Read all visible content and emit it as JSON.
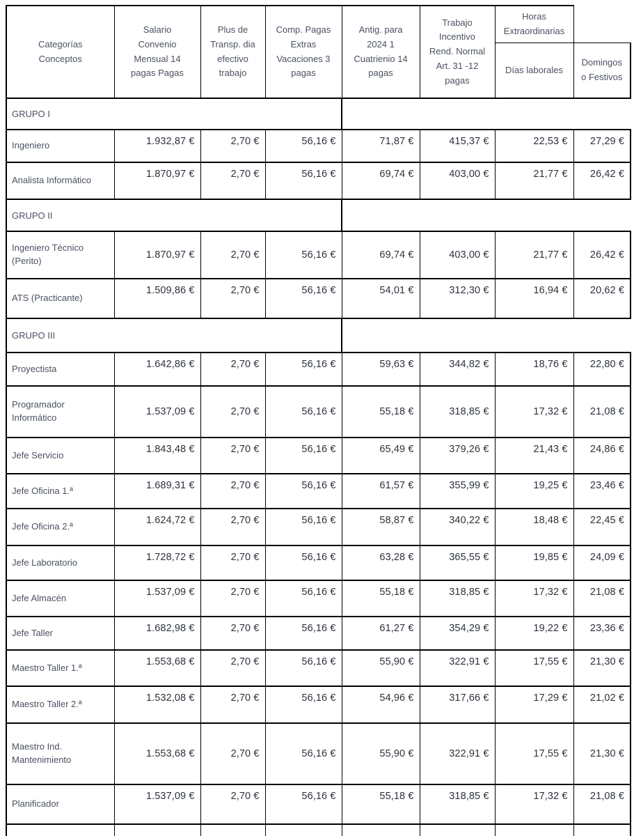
{
  "table": {
    "header": {
      "categories": "Categorías\nConceptos",
      "salario": "Salario\nConvenio\nMensual 14\npagas Pagas",
      "plus_transporte": "Plus de\nTransp. dia\nefectivo\ntrabajo",
      "comp_pagas": "Comp. Pagas\nExtras\nVacaciones 3\npagas",
      "antiguedad": "Antig. para\n2024 1\nCuatrienio 14\npagas",
      "trabajo_incentivo": "Trabajo\nIncentivo\nRend. Normal\nArt. 31 -12\npagas",
      "horas_extraordinarias": "Horas\nExtraordinarias",
      "dias_laborales": "Días laborales",
      "domingos_festivos": "Domingos\no Festivos"
    },
    "rows": [
      {
        "type": "group",
        "label": "GRUPO I"
      },
      {
        "type": "data",
        "label": "Ingeniero",
        "values": [
          "1.932,87 €",
          "2,70 €",
          "56,16 €",
          "71,87 €",
          "415,37 €",
          "22,53 €",
          "27,29 €"
        ]
      },
      {
        "type": "data",
        "label": "Analista Informático",
        "values": [
          "1.870,97 €",
          "2,70 €",
          "56,16 €",
          "69,74 €",
          "403,00 €",
          "21,77 €",
          "26,42 €"
        ]
      },
      {
        "type": "group",
        "label": "GRUPO II"
      },
      {
        "type": "data",
        "label": "Ingeniero Técnico (Perito)",
        "values": [
          "1.870,97 €",
          "2,70 €",
          "56,16 €",
          "69,74 €",
          "403,00 €",
          "21,77 €",
          "26,42 €"
        ]
      },
      {
        "type": "data",
        "label": "ATS (Practicante)",
        "values": [
          "1.509,86 €",
          "2,70 €",
          "56,16 €",
          "54,01 €",
          "312,30 €",
          "16,94 €",
          "20,62 €"
        ]
      },
      {
        "type": "group",
        "label": "GRUPO III"
      },
      {
        "type": "data",
        "label": "Proyectista",
        "values": [
          "1.642,86 €",
          "2,70 €",
          "56,16 €",
          "59,63 €",
          "344,82 €",
          "18,76 €",
          "22,80 €"
        ]
      },
      {
        "type": "data",
        "label": "Programador Informático",
        "values": [
          "1.537,09 €",
          "2,70 €",
          "56,16 €",
          "55,18 €",
          "318,85 €",
          "17,32 €",
          "21,08 €"
        ]
      },
      {
        "type": "data",
        "label": "Jefe Servicio",
        "values": [
          "1.843,48 €",
          "2,70 €",
          "56,16 €",
          "65,49 €",
          "379,26 €",
          "21,43 €",
          "24,86 €"
        ]
      },
      {
        "type": "data",
        "label": "Jefe Oficina 1.ª",
        "values": [
          "1.689,31 €",
          "2,70 €",
          "56,16 €",
          "61,57 €",
          "355,99 €",
          "19,25 €",
          "23,46 €"
        ]
      },
      {
        "type": "data",
        "label": "Jefe Oficina 2.ª",
        "values": [
          "1.624,72 €",
          "2,70 €",
          "56,16 €",
          "58,87 €",
          "340,22 €",
          "18,48 €",
          "22,45 €"
        ]
      },
      {
        "type": "data",
        "label": "Jefe Laboratorio",
        "values": [
          "1.728,72 €",
          "2,70 €",
          "56,16 €",
          "63,28 €",
          "365,55 €",
          "19,85 €",
          "24,09 €"
        ]
      },
      {
        "type": "data",
        "label": "Jefe Almacén",
        "values": [
          "1.537,09 €",
          "2,70 €",
          "56,16 €",
          "55,18 €",
          "318,85 €",
          "17,32 €",
          "21,08 €"
        ]
      },
      {
        "type": "data",
        "label": "Jefe Taller",
        "values": [
          "1.682,98 €",
          "2,70 €",
          "56,16 €",
          "61,27 €",
          "354,29 €",
          "19,22 €",
          "23,36 €"
        ]
      },
      {
        "type": "data",
        "label": "Maestro Taller 1.ª",
        "values": [
          "1.553,68 €",
          "2,70 €",
          "56,16 €",
          "55,90 €",
          "322,91 €",
          "17,55 €",
          "21,30 €"
        ]
      },
      {
        "type": "data",
        "label": "Maestro Taller 2.ª",
        "values": [
          "1.532,08 €",
          "2,70 €",
          "56,16 €",
          "54,96 €",
          "317,66 €",
          "17,29 €",
          "21,02 €"
        ]
      },
      {
        "type": "data",
        "label": "Maestro Ind. Mantenimiento",
        "values": [
          "1.553,68 €",
          "2,70 €",
          "56,16 €",
          "55,90 €",
          "322,91 €",
          "17,55 €",
          "21,30 €"
        ]
      },
      {
        "type": "data",
        "label": "Planificador",
        "values": [
          "1.537,09 €",
          "2,70 €",
          "56,16 €",
          "55,18 €",
          "318,85 €",
          "17,32 €",
          "21,08 €"
        ]
      }
    ]
  }
}
